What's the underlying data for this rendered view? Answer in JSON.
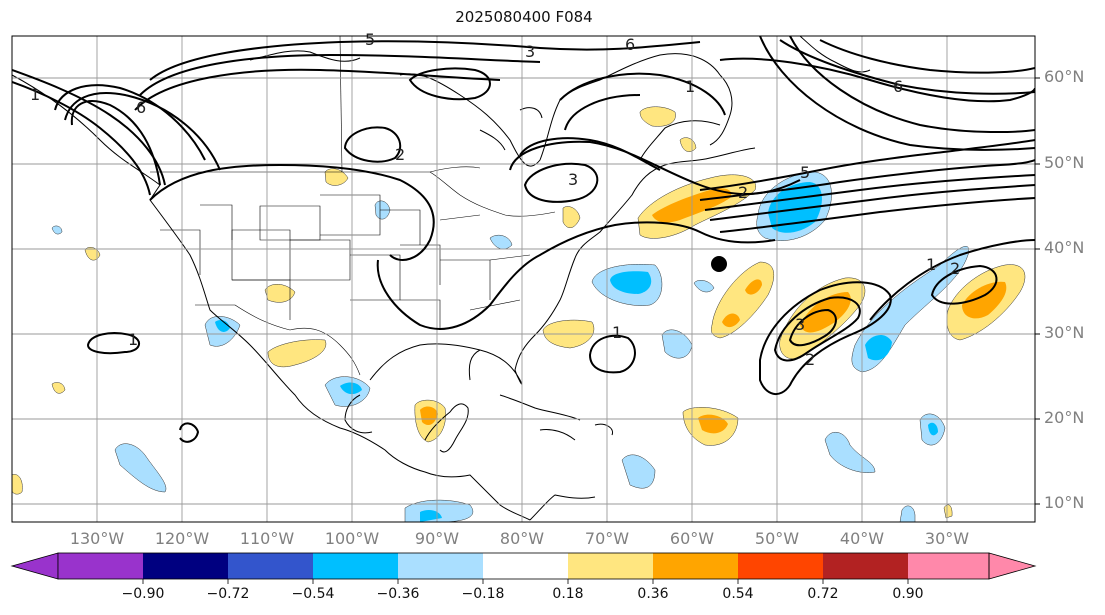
{
  "title": "2025080400 F084",
  "lat_labels": [
    "60°N",
    "50°N",
    "40°N",
    "30°N",
    "20°N",
    "10°N"
  ],
  "lon_labels": [
    "130°W",
    "120°W",
    "110°W",
    "100°W",
    "90°W",
    "80°W",
    "70°W",
    "60°W",
    "50°W",
    "40°W",
    "30°W"
  ],
  "contour_labels": [
    "5",
    "3",
    "6",
    "1",
    "2",
    "3",
    "6",
    "5",
    "1",
    "1",
    "2",
    "3",
    "2",
    "1",
    "1",
    "6",
    "2"
  ],
  "colorbar": {
    "ticks": [
      "−0.90",
      "−0.72",
      "−0.54",
      "−0.36",
      "−0.18",
      "0.18",
      "0.36",
      "0.54",
      "0.72",
      "0.90"
    ],
    "colors": [
      "#9933cc",
      "#000080",
      "#3355cc",
      "#00bfff",
      "#aadfff",
      "#ffffff",
      "#ffe680",
      "#ffa500",
      "#ff4500",
      "#b22222",
      "#ff88aa"
    ]
  },
  "colors": {
    "pos_weak": "#ffe680",
    "pos_mid": "#ffa500",
    "neg_weak": "#aadfff",
    "neg_mid": "#00bfff"
  },
  "marker": "black-dot"
}
